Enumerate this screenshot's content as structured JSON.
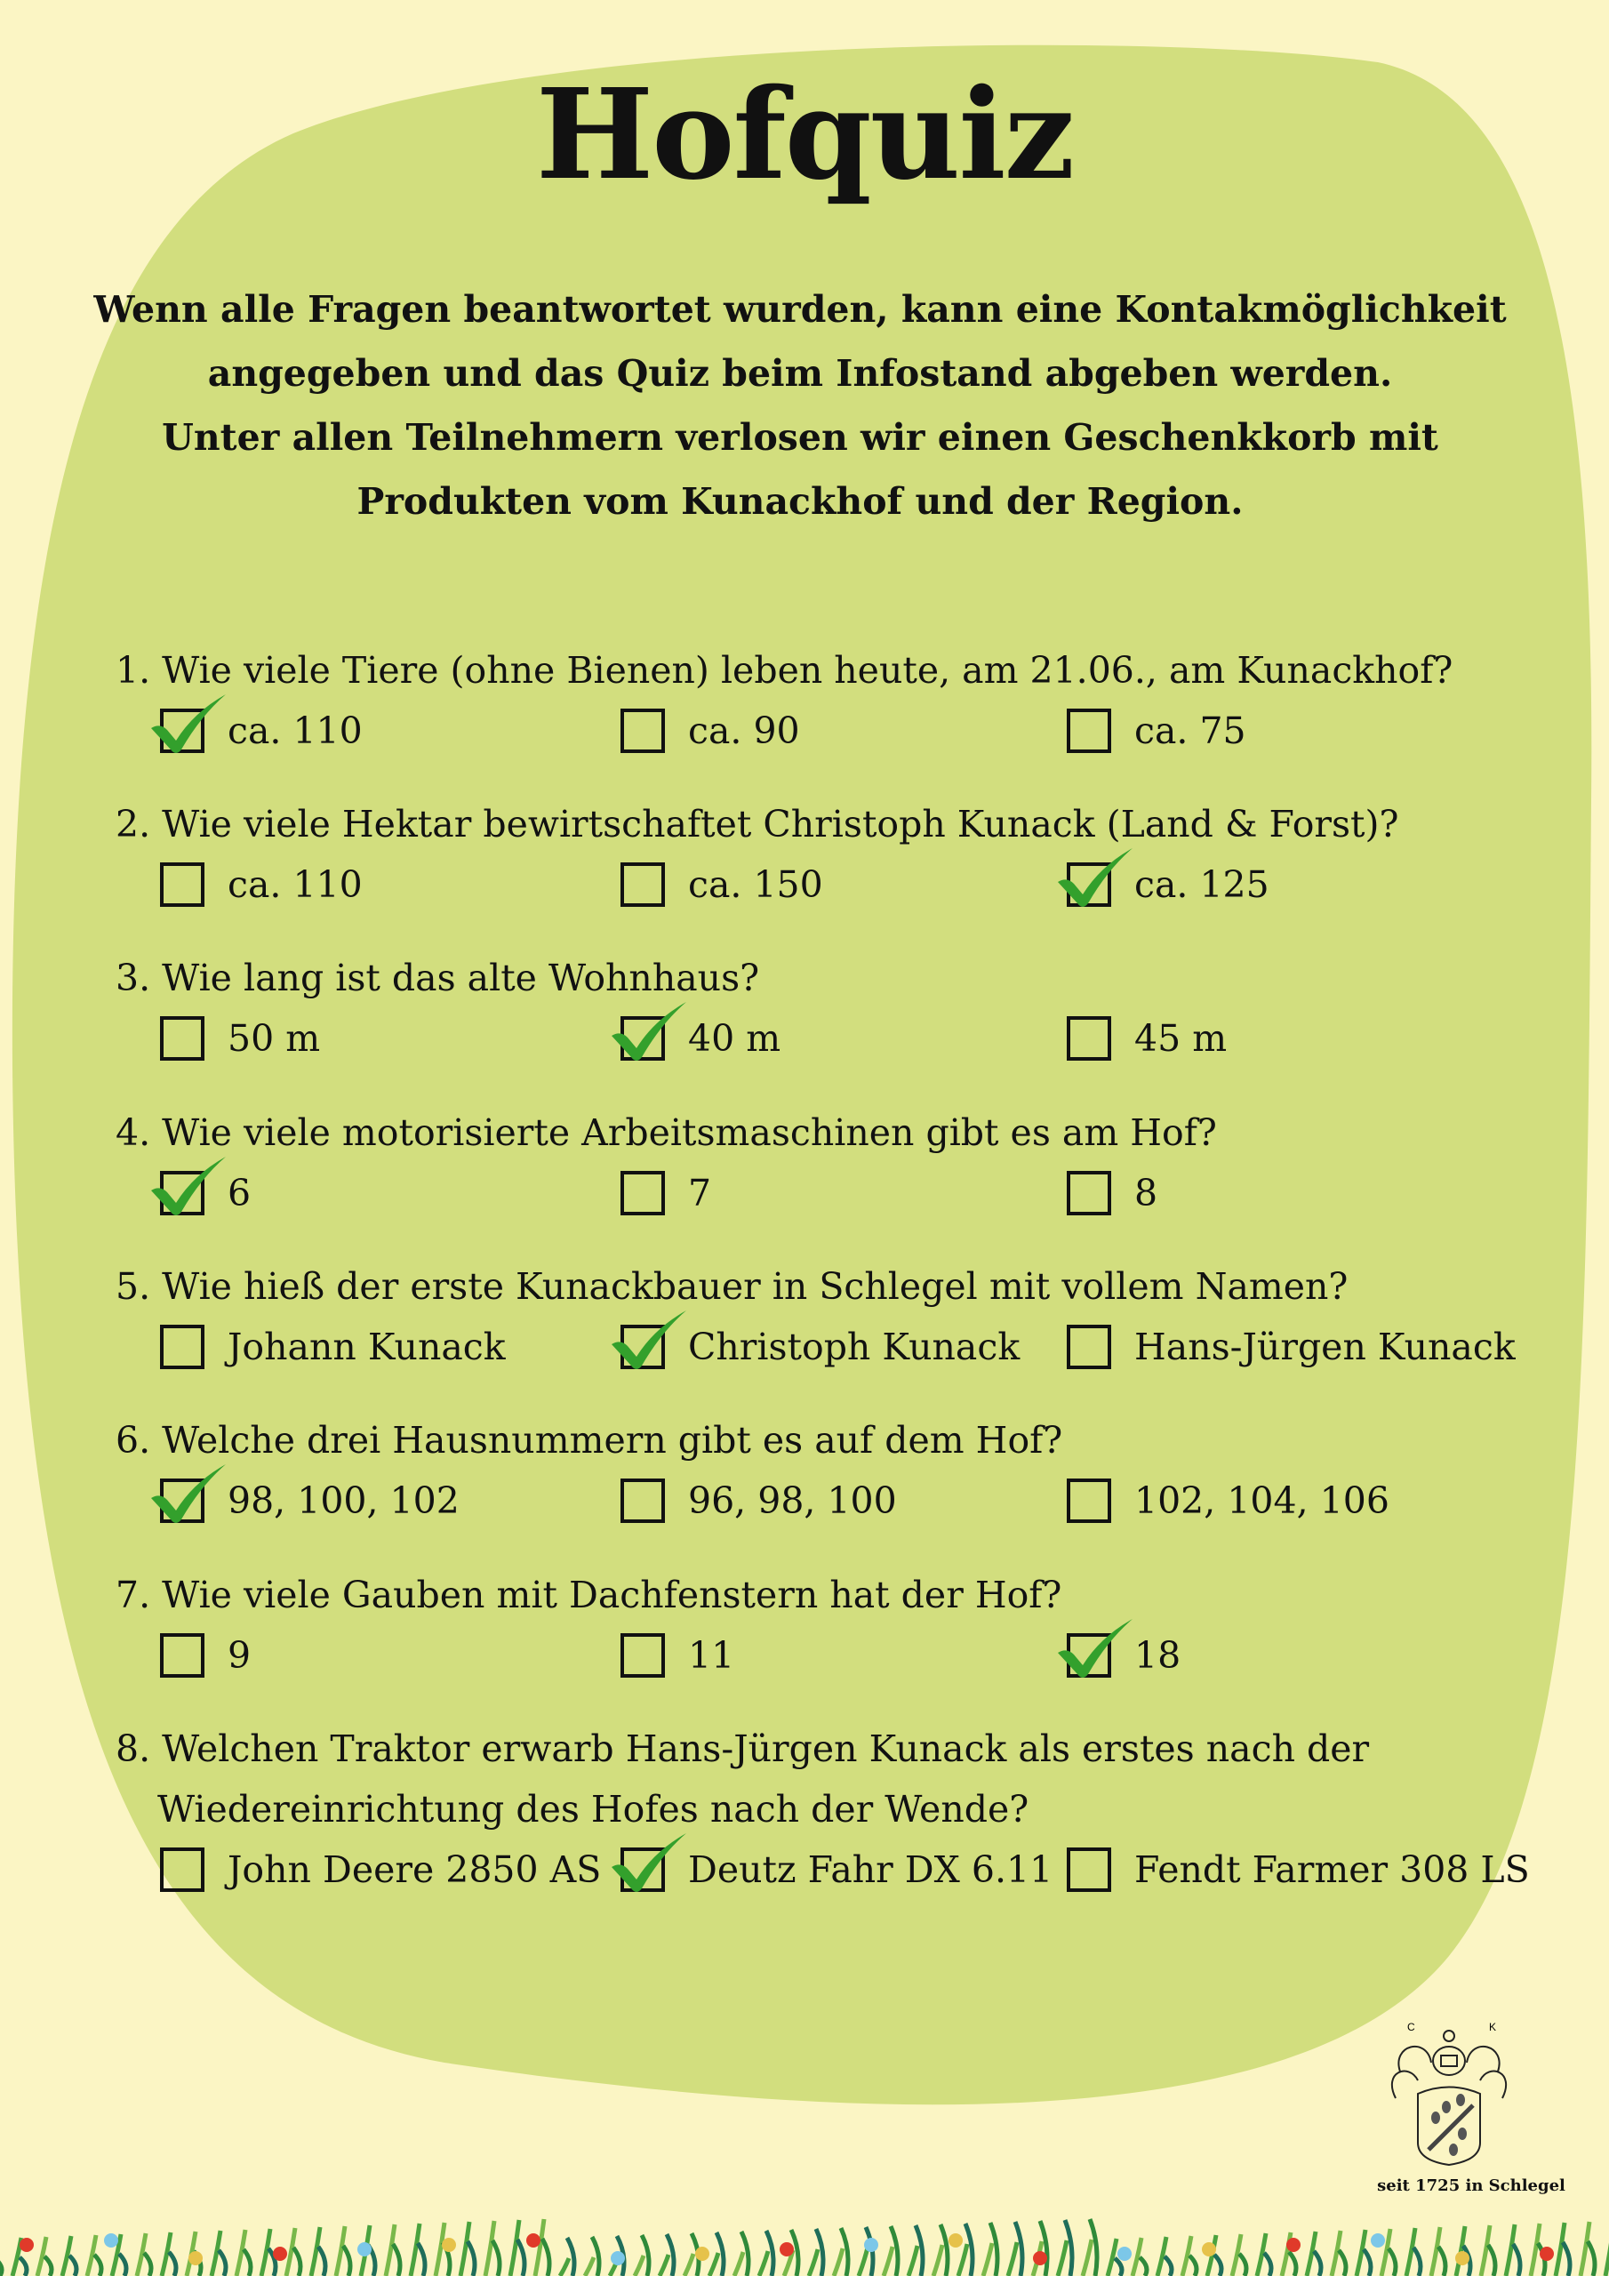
{
  "title": "Hofquiz",
  "intro": [
    "Wenn alle Fragen beantwortet wurden, kann eine Kontakmöglichkeit",
    "angegeben und das  Quiz beim Infostand abgeben werden.",
    "Unter allen Teilnehmern verlosen wir einen Geschenkkorb mit",
    "Produkten vom Kunackhof und der Region."
  ],
  "colors": {
    "background": "#fbf5c4",
    "blob": "#d2de7e",
    "check": "#33a02c"
  },
  "questions": [
    {
      "text": [
        "1. Wie viele Tiere (ohne Bienen) leben heute, am 21.06., am Kunackhof?"
      ],
      "options": [
        "ca. 110",
        "ca. 90",
        "ca. 75"
      ],
      "checked": 0
    },
    {
      "text": [
        "2. Wie viele Hektar bewirtschaftet Christoph Kunack (Land & Forst)?"
      ],
      "options": [
        "ca. 110",
        "ca. 150",
        "ca. 125"
      ],
      "checked": 2
    },
    {
      "text": [
        "3. Wie lang ist das alte Wohnhaus?"
      ],
      "options": [
        "50 m",
        "40 m",
        "45 m"
      ],
      "checked": 1
    },
    {
      "text": [
        "4. Wie viele motorisierte Arbeitsmaschinen gibt es am Hof?"
      ],
      "options": [
        "6",
        "7",
        "8"
      ],
      "checked": 0
    },
    {
      "text": [
        "5. Wie hieß der erste Kunackbauer in Schlegel mit vollem Namen?"
      ],
      "options": [
        "Johann Kunack",
        "Christoph Kunack",
        "Hans-Jürgen Kunack"
      ],
      "checked": 1
    },
    {
      "text": [
        "6. Welche drei Hausnummern gibt es auf dem Hof?"
      ],
      "options": [
        "98, 100, 102",
        "96, 98, 100",
        "102, 104, 106"
      ],
      "checked": 0
    },
    {
      "text": [
        "7. Wie viele Gauben mit Dachfenstern hat der Hof?"
      ],
      "options": [
        "9",
        "11",
        "18"
      ],
      "checked": 2
    },
    {
      "text": [
        "8. Welchen Traktor erwarb Hans-Jürgen Kunack als erstes nach der",
        "Wiedereinrichtung des Hofes nach der Wende?"
      ],
      "options": [
        "John Deere 2850 AS",
        "Deutz Fahr DX 6.11",
        "Fendt Farmer 308 LS"
      ],
      "checked": 1
    }
  ],
  "logo": {
    "initials": [
      "C",
      "K"
    ],
    "tagline": "seit 1725 in Schlegel"
  }
}
